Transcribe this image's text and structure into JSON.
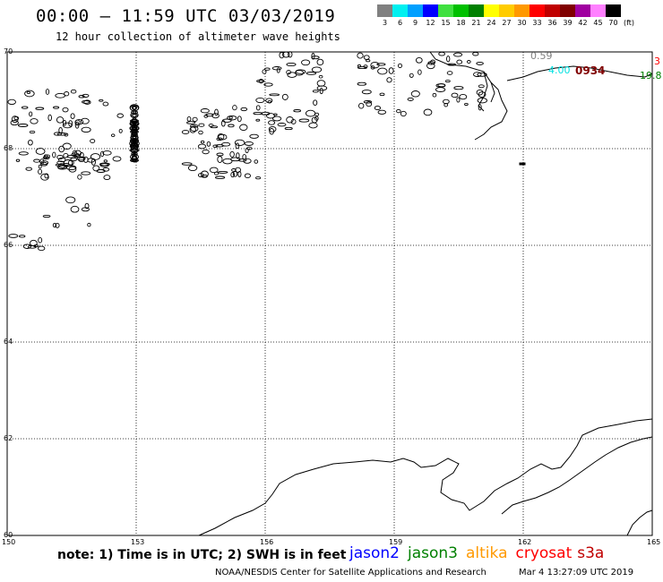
{
  "header": {
    "title": "00:00 – 11:59 UTC 03/03/2019",
    "subtitle": "12 hour collection of altimeter wave heights"
  },
  "legend": {
    "unit": "(ft)",
    "items": [
      {
        "label": "3",
        "color": "#808080"
      },
      {
        "label": "6",
        "color": "#00f0f0"
      },
      {
        "label": "9",
        "color": "#00a0ff"
      },
      {
        "label": "12",
        "color": "#0000ff"
      },
      {
        "label": "15",
        "color": "#40e040"
      },
      {
        "label": "18",
        "color": "#00c000"
      },
      {
        "label": "21",
        "color": "#008000"
      },
      {
        "label": "24",
        "color": "#ffff00"
      },
      {
        "label": "27",
        "color": "#ffcc00"
      },
      {
        "label": "30",
        "color": "#ff9900"
      },
      {
        "label": "33",
        "color": "#ff0000"
      },
      {
        "label": "36",
        "color": "#c00000"
      },
      {
        "label": "39",
        "color": "#800000"
      },
      {
        "label": "42",
        "color": "#a000a0"
      },
      {
        "label": "45",
        "color": "#ff80ff"
      },
      {
        "label": "70",
        "color": "#000000"
      }
    ]
  },
  "map": {
    "lat_labels": [
      "70",
      "68",
      "66",
      "64",
      "62",
      "60"
    ],
    "lon_labels": [
      "150",
      "153",
      "156",
      "159",
      "162",
      "165"
    ],
    "track_labels": [
      {
        "text": "0.59",
        "color": "#808080"
      },
      {
        "text": "4.00",
        "color": "#00e0e0"
      },
      {
        "text": "0934",
        "color": "#800000"
      },
      {
        "text": "3",
        "color": "#ff0000"
      },
      {
        "text": "19.8",
        "color": "#008000"
      }
    ]
  },
  "footer": {
    "note": "note:  1) Time is in UTC;  2) SWH is in feet",
    "satellites": [
      {
        "name": "jason2",
        "color": "#0000ff"
      },
      {
        "name": "jason3",
        "color": "#008000"
      },
      {
        "name": "altika",
        "color": "#ff9900"
      },
      {
        "name": "cryosat",
        "color": "#ff0000"
      },
      {
        "name": "s3a",
        "color": "#c00000"
      }
    ],
    "credit": "NOAA/NESDIS Center for Satellite Applications and Research",
    "timestamp": "Mar  4 13:27:09 UTC 2019"
  }
}
